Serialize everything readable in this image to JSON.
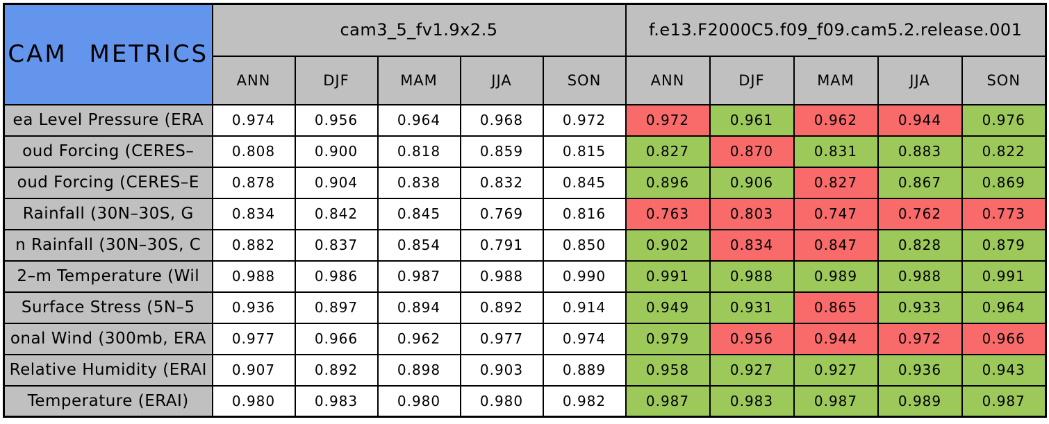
{
  "title": "CAM METRICS",
  "colors": {
    "title_bg": "#6495ED",
    "header_bg": "#C0C0C0",
    "green_cell": "#9DC95B",
    "red_cell": "#F96B6B",
    "plain_cell": "#FFFFFF",
    "border": "#000000"
  },
  "chart_data": {
    "type": "table",
    "title": "CAM METRICS",
    "column_groups": [
      {
        "label": "cam3_5_fv1.9x2.5",
        "seasons": [
          "ANN",
          "DJF",
          "MAM",
          "JJA",
          "SON"
        ]
      },
      {
        "label": "f.e13.F2000C5.f09_f09.cam5.2.release.001",
        "seasons": [
          "ANN",
          "DJF",
          "MAM",
          "JJA",
          "SON"
        ]
      }
    ],
    "rows": [
      {
        "label": "ea Level Pressure (ERA",
        "cam3_5_values": [
          "0.974",
          "0.956",
          "0.964",
          "0.968",
          "0.972"
        ],
        "cam5_values": [
          "0.972",
          "0.961",
          "0.962",
          "0.944",
          "0.976"
        ],
        "cam5_colors": [
          "red",
          "green",
          "red",
          "red",
          "green"
        ]
      },
      {
        "label": "oud Forcing (CERES–",
        "cam3_5_values": [
          "0.808",
          "0.900",
          "0.818",
          "0.859",
          "0.815"
        ],
        "cam5_values": [
          "0.827",
          "0.870",
          "0.831",
          "0.883",
          "0.822"
        ],
        "cam5_colors": [
          "green",
          "red",
          "green",
          "green",
          "green"
        ]
      },
      {
        "label": "oud Forcing (CERES–E",
        "cam3_5_values": [
          "0.878",
          "0.904",
          "0.838",
          "0.832",
          "0.845"
        ],
        "cam5_values": [
          "0.896",
          "0.906",
          "0.827",
          "0.867",
          "0.869"
        ],
        "cam5_colors": [
          "green",
          "green",
          "red",
          "green",
          "green"
        ]
      },
      {
        "label": " Rainfall (30N–30S, G",
        "cam3_5_values": [
          "0.834",
          "0.842",
          "0.845",
          "0.769",
          "0.816"
        ],
        "cam5_values": [
          "0.763",
          "0.803",
          "0.747",
          "0.762",
          "0.773"
        ],
        "cam5_colors": [
          "red",
          "red",
          "red",
          "red",
          "red"
        ]
      },
      {
        "label": "n Rainfall (30N–30S, C",
        "cam3_5_values": [
          "0.882",
          "0.837",
          "0.854",
          "0.791",
          "0.850"
        ],
        "cam5_values": [
          "0.902",
          "0.834",
          "0.847",
          "0.828",
          "0.879"
        ],
        "cam5_colors": [
          "green",
          "red",
          "red",
          "green",
          "green"
        ]
      },
      {
        "label": "2–m Temperature (Wil",
        "cam3_5_values": [
          "0.988",
          "0.986",
          "0.987",
          "0.988",
          "0.990"
        ],
        "cam5_values": [
          "0.991",
          "0.988",
          "0.989",
          "0.988",
          "0.991"
        ],
        "cam5_colors": [
          "green",
          "green",
          "green",
          "green",
          "green"
        ]
      },
      {
        "label": " Surface Stress (5N–5",
        "cam3_5_values": [
          "0.936",
          "0.897",
          "0.894",
          "0.892",
          "0.914"
        ],
        "cam5_values": [
          "0.949",
          "0.931",
          "0.865",
          "0.933",
          "0.964"
        ],
        "cam5_colors": [
          "green",
          "green",
          "red",
          "green",
          "green"
        ]
      },
      {
        "label": "onal Wind (300mb, ERA",
        "cam3_5_values": [
          "0.977",
          "0.966",
          "0.962",
          "0.977",
          "0.974"
        ],
        "cam5_values": [
          "0.979",
          "0.956",
          "0.944",
          "0.972",
          "0.966"
        ],
        "cam5_colors": [
          "green",
          "red",
          "red",
          "red",
          "red"
        ]
      },
      {
        "label": "Relative Humidity (ERAI",
        "cam3_5_values": [
          "0.907",
          "0.892",
          "0.898",
          "0.903",
          "0.889"
        ],
        "cam5_values": [
          "0.958",
          "0.927",
          "0.927",
          "0.936",
          "0.943"
        ],
        "cam5_colors": [
          "green",
          "green",
          "green",
          "green",
          "green"
        ]
      },
      {
        "label": "Temperature (ERAI)",
        "cam3_5_values": [
          "0.980",
          "0.983",
          "0.980",
          "0.980",
          "0.982"
        ],
        "cam5_values": [
          "0.987",
          "0.983",
          "0.987",
          "0.989",
          "0.987"
        ],
        "cam5_colors": [
          "green",
          "green",
          "green",
          "green",
          "green"
        ]
      }
    ]
  }
}
